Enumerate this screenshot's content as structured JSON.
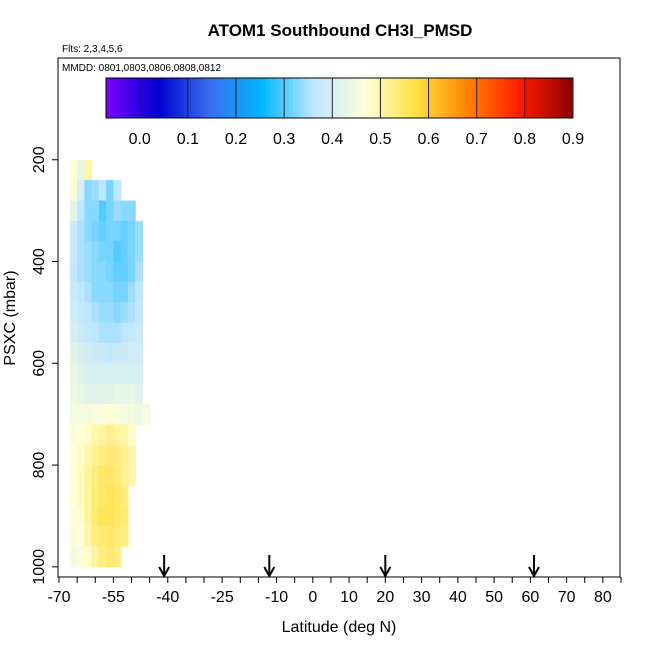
{
  "chart_data": {
    "type": "heatmap",
    "title": "ATOM1 Southbound CH3I_PMSD",
    "flights_note": "Flts: 2,3,4,5,6",
    "dates_note": "MMDD: 0801,0803,0806,0808,0812",
    "xlabel": "Latitude (deg N)",
    "ylabel": "PSXC (mbar)",
    "xlim": [
      -70,
      85
    ],
    "ylim": [
      1020,
      0
    ],
    "x_ticks_major": [
      -70,
      -55,
      -40,
      -25,
      -10,
      0,
      10,
      20,
      30,
      40,
      50,
      60,
      70,
      80
    ],
    "x_ticks_minor_step": 5,
    "y_ticks": [
      200,
      400,
      600,
      800,
      1000
    ],
    "colorbar": {
      "min": -0.07,
      "max": 0.9,
      "tick_values": [
        0.0,
        0.1,
        0.2,
        0.3,
        0.4,
        0.5,
        0.6,
        0.7,
        0.8,
        0.9
      ],
      "tick_labels": [
        "0.0",
        "0.1",
        "0.2",
        "0.3",
        "0.4",
        "0.5",
        "0.6",
        "0.7",
        "0.8",
        "0.9"
      ],
      "colors": [
        "#7f00ff",
        "#0000d0",
        "#3a6ff0",
        "#00b6ff",
        "#bfe6ff",
        "#ffffd8",
        "#ffe040",
        "#ff8000",
        "#ff1a00",
        "#8b0000"
      ]
    },
    "arrows_latitude": [
      -41,
      -12,
      20,
      61
    ],
    "data": {
      "lat_bins": [
        -66,
        -64,
        -62,
        -60,
        -58,
        -56,
        -54,
        -52,
        -50,
        -48,
        -46
      ],
      "pressure_levels": [
        220,
        260,
        300,
        340,
        380,
        420,
        460,
        500,
        540,
        580,
        620,
        660,
        700,
        740,
        780,
        820,
        860,
        900,
        940,
        980
      ],
      "values": [
        [
          0.47,
          0.43,
          0.5,
          null,
          null,
          null,
          null,
          null,
          null,
          null,
          null
        ],
        [
          0.46,
          0.4,
          0.33,
          0.34,
          0.36,
          0.32,
          0.36,
          null,
          null,
          null,
          null
        ],
        [
          0.42,
          0.36,
          0.33,
          0.33,
          0.3,
          0.32,
          0.34,
          0.33,
          0.33,
          null,
          null
        ],
        [
          0.38,
          0.35,
          0.33,
          0.32,
          0.31,
          0.32,
          0.32,
          0.31,
          0.32,
          0.34,
          null
        ],
        [
          0.38,
          0.35,
          0.34,
          0.33,
          0.32,
          0.32,
          0.3,
          0.31,
          0.32,
          0.34,
          null
        ],
        [
          0.37,
          0.35,
          0.34,
          0.33,
          0.33,
          0.32,
          0.31,
          0.31,
          0.32,
          0.35,
          null
        ],
        [
          0.38,
          0.36,
          0.35,
          0.33,
          0.33,
          0.33,
          0.32,
          0.32,
          0.34,
          0.36,
          null
        ],
        [
          0.39,
          0.37,
          0.36,
          0.35,
          0.34,
          0.34,
          0.33,
          0.34,
          0.35,
          0.37,
          null
        ],
        [
          0.4,
          0.38,
          0.37,
          0.36,
          0.35,
          0.35,
          0.35,
          0.36,
          0.37,
          0.38,
          null
        ],
        [
          0.42,
          0.4,
          0.39,
          0.38,
          0.38,
          0.37,
          0.38,
          0.38,
          0.39,
          0.39,
          null
        ],
        [
          0.43,
          0.41,
          0.4,
          0.4,
          0.4,
          0.4,
          0.4,
          0.4,
          0.4,
          0.4,
          null
        ],
        [
          0.44,
          0.43,
          0.42,
          0.42,
          0.42,
          0.42,
          0.43,
          0.43,
          0.43,
          0.42,
          null
        ],
        [
          0.45,
          0.45,
          0.45,
          0.46,
          0.46,
          0.47,
          0.46,
          0.45,
          0.45,
          0.44,
          0.45
        ],
        [
          0.46,
          0.47,
          0.48,
          0.5,
          0.51,
          0.52,
          0.51,
          0.5,
          0.48,
          null,
          null
        ],
        [
          0.47,
          0.48,
          0.5,
          0.52,
          0.53,
          0.54,
          0.53,
          0.52,
          0.5,
          null,
          null
        ],
        [
          0.47,
          0.49,
          0.51,
          0.53,
          0.55,
          0.55,
          0.54,
          0.52,
          0.5,
          null,
          null
        ],
        [
          0.47,
          0.49,
          0.51,
          0.54,
          0.55,
          0.56,
          0.55,
          0.53,
          null,
          null,
          null
        ],
        [
          0.46,
          0.48,
          0.51,
          0.54,
          0.56,
          0.56,
          0.55,
          0.54,
          null,
          null,
          null
        ],
        [
          0.46,
          0.47,
          0.5,
          0.53,
          0.54,
          0.55,
          0.54,
          0.53,
          null,
          null,
          null
        ],
        [
          0.45,
          0.46,
          0.48,
          0.51,
          0.53,
          0.54,
          0.53,
          null,
          null,
          null,
          null
        ]
      ]
    }
  }
}
